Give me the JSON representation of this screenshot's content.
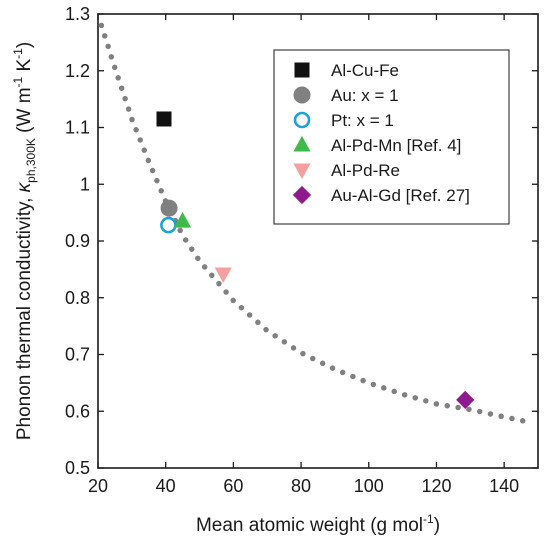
{
  "chart_data": {
    "type": "scatter",
    "xlabel_main": "Mean atomic weight (g mol",
    "xlabel_sup": "-1",
    "xlabel_end": ")",
    "ylabel_main": "Phonon thermal conductivity, ",
    "ylabel_kappa": "κ",
    "ylabel_sub": "ph,300K",
    "ylabel_units_a": " (W m",
    "ylabel_units_sup1": "-1",
    "ylabel_units_b": " K",
    "ylabel_units_sup2": "-1",
    "ylabel_units_c": ")",
    "xlim": [
      20,
      150
    ],
    "ylim": [
      0.5,
      1.3
    ],
    "x_ticks": [
      20,
      40,
      60,
      80,
      100,
      120,
      140
    ],
    "x_tick_labels": [
      "20",
      "40",
      "60",
      "80",
      "100",
      "120",
      "140"
    ],
    "y_ticks": [
      0.5,
      0.6,
      0.7,
      0.8,
      0.9,
      1.0,
      1.1,
      1.2,
      1.3
    ],
    "y_tick_labels": [
      "0.5",
      "0.6",
      "0.7",
      "0.8",
      "0.9",
      "1",
      "1.1",
      "1.2",
      "1.3"
    ],
    "legend_position": "top-right",
    "series": [
      {
        "name": "Al-Cu-Fe",
        "marker": "square",
        "color": "#111111",
        "filled": true,
        "points": [
          [
            39.5,
            1.115
          ]
        ]
      },
      {
        "name": "Au: x = 1",
        "marker": "circle",
        "color": "#808080",
        "filled": true,
        "points": [
          [
            41,
            0.958
          ]
        ]
      },
      {
        "name": "Pt: x = 1",
        "marker": "circle",
        "color": "#1aa3d9",
        "filled": false,
        "points": [
          [
            40.8,
            0.928
          ]
        ]
      },
      {
        "name": "Al-Pd-Mn [Ref. 4]",
        "marker": "triangle-up",
        "color": "#3dba4a",
        "filled": true,
        "points": [
          [
            45,
            0.935
          ]
        ]
      },
      {
        "name": "Al-Pd-Re",
        "marker": "triangle-down",
        "color": "#f5a0a0",
        "filled": true,
        "points": [
          [
            57,
            0.842
          ]
        ]
      },
      {
        "name": "Au-Al-Gd [Ref. 27]",
        "marker": "diamond",
        "color": "#8e1a8e",
        "filled": true,
        "points": [
          [
            128.5,
            0.62
          ]
        ]
      }
    ],
    "fit_curve": {
      "style": "dotted",
      "color": "#808080",
      "x": [
        21,
        25,
        30,
        35,
        40,
        45,
        50,
        55,
        60,
        70,
        80,
        90,
        100,
        110,
        120,
        130,
        140,
        148
      ],
      "y": [
        1.28,
        1.205,
        1.115,
        1.04,
        0.97,
        0.91,
        0.865,
        0.83,
        0.795,
        0.742,
        0.703,
        0.674,
        0.65,
        0.63,
        0.613,
        0.603,
        0.59,
        0.58
      ]
    }
  }
}
